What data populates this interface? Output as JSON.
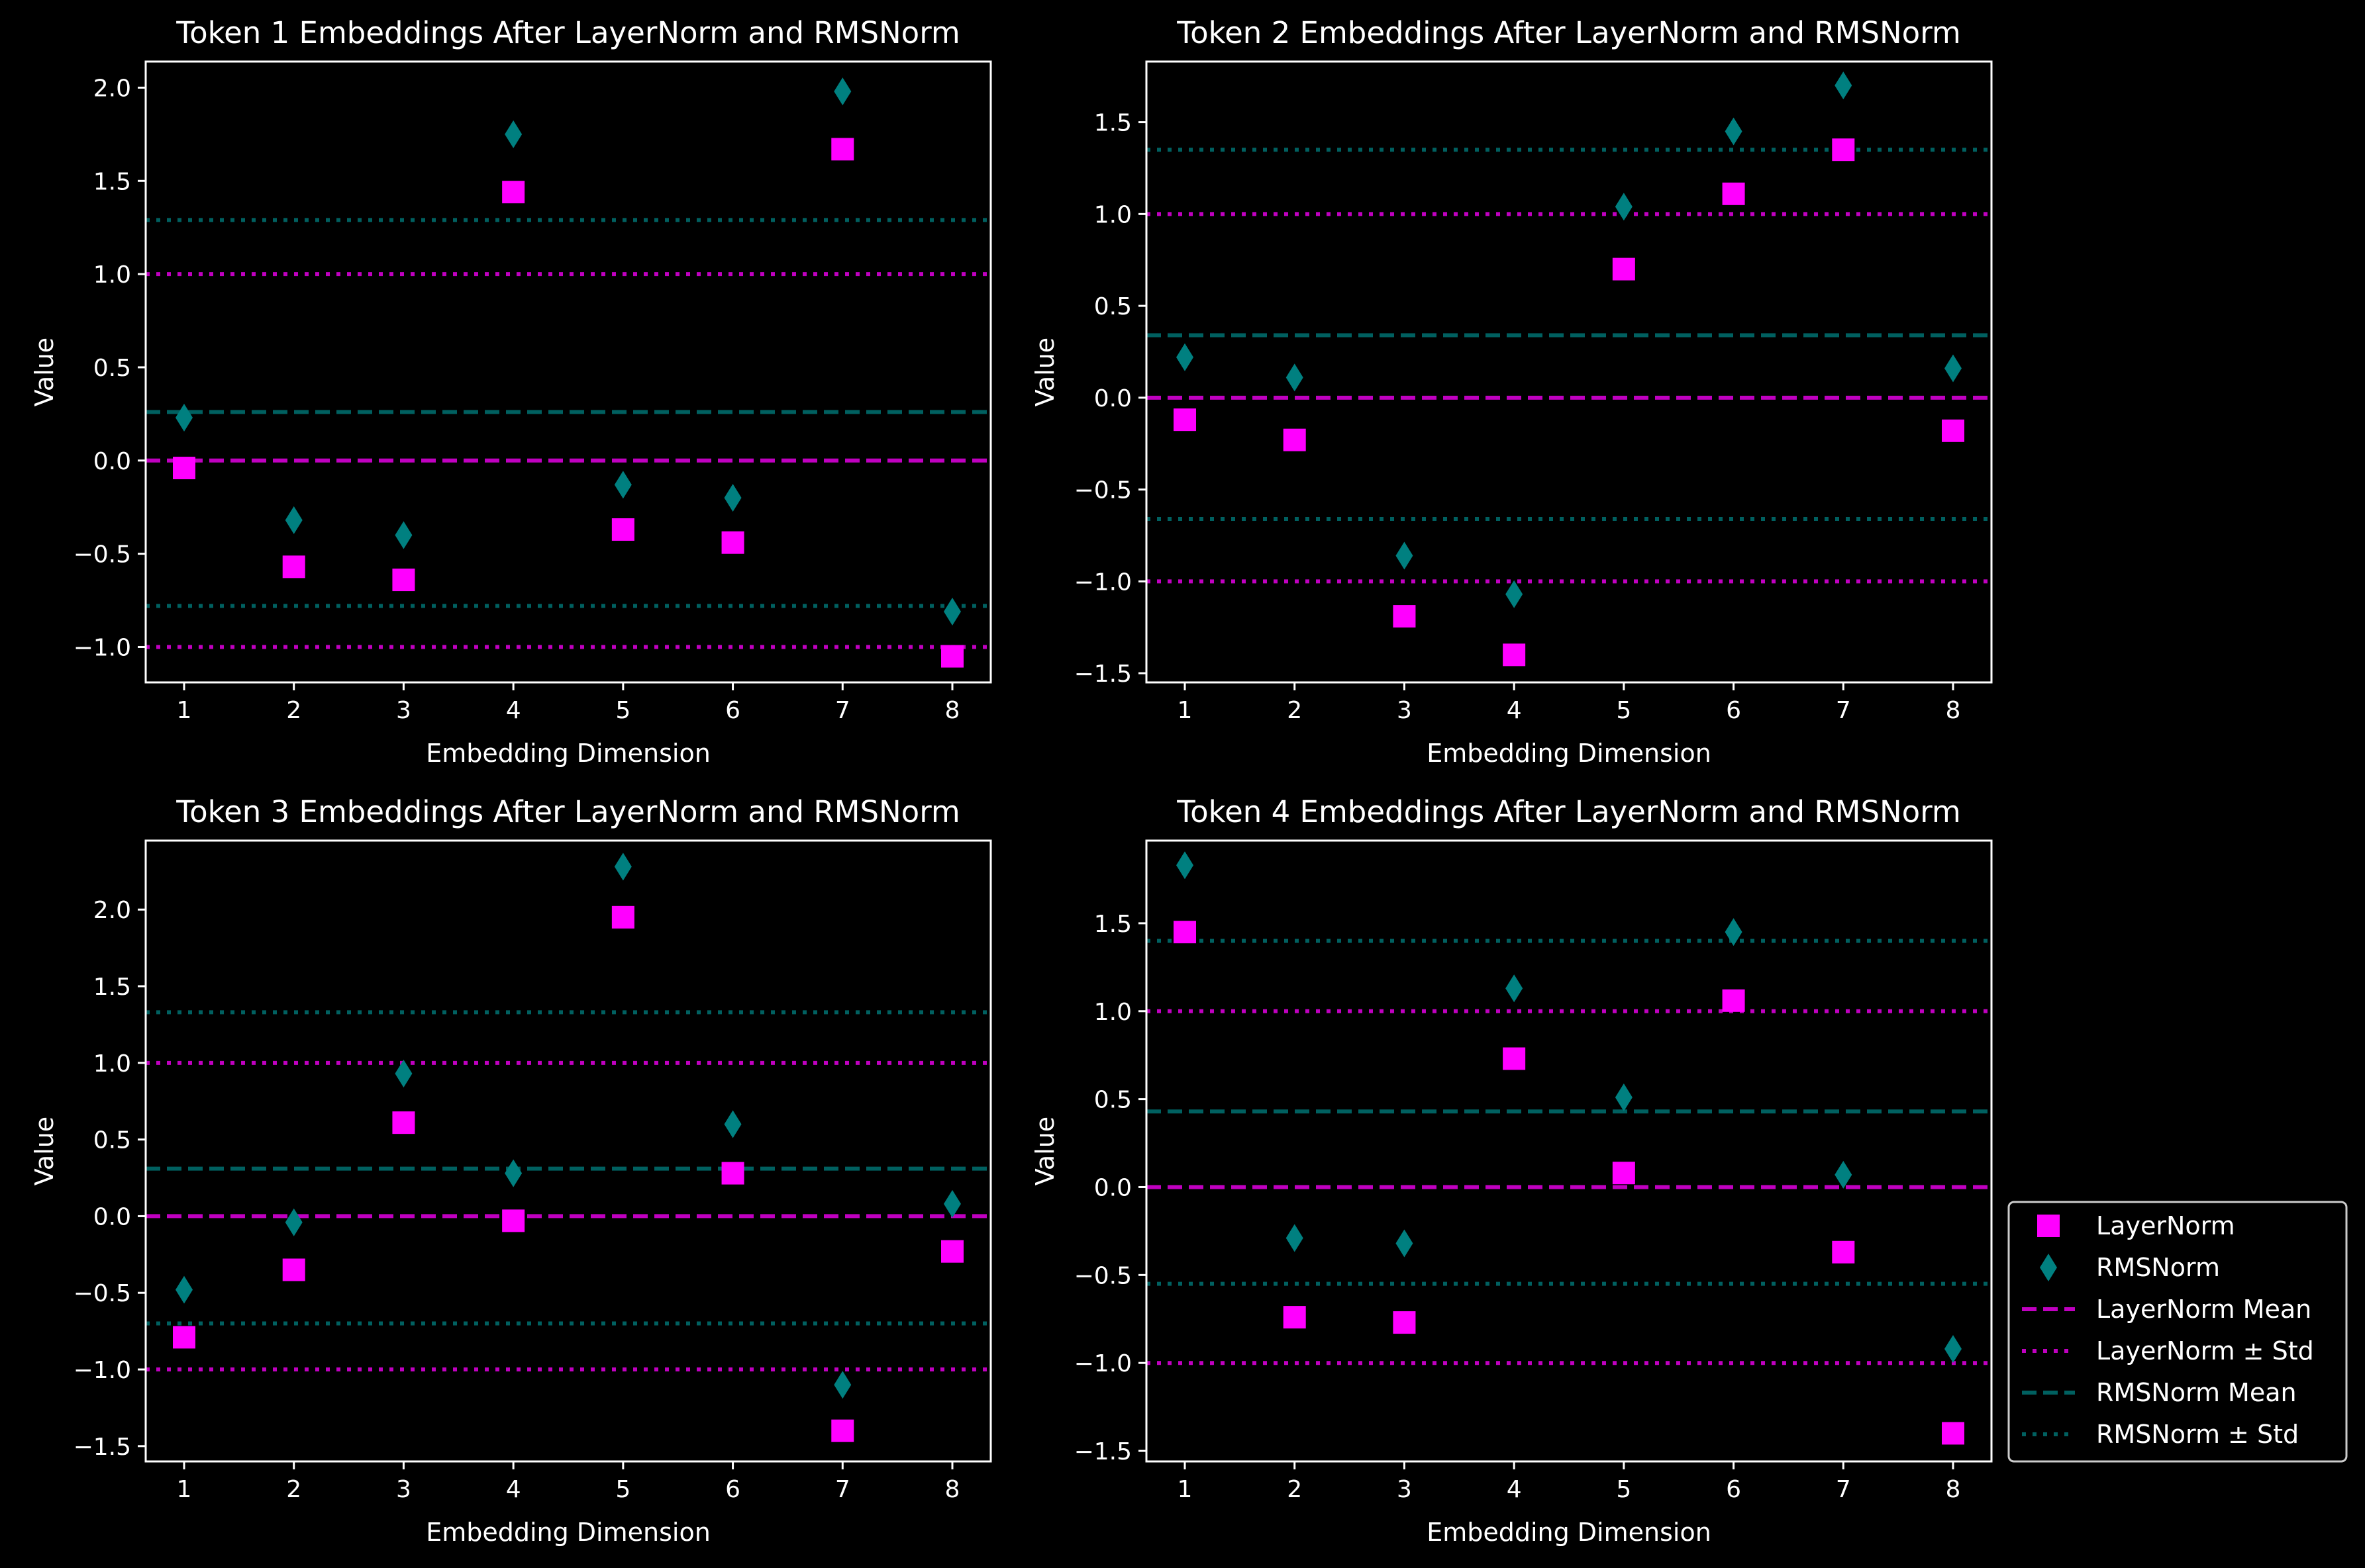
{
  "colors": {
    "background": "#000000",
    "axes": "#ffffff",
    "layernorm": "#ff00ff",
    "layernorm_lines": "#c000c0",
    "rmsnorm": "#008080",
    "rmsnorm_lines": "#006060"
  },
  "legend": {
    "placement": "lower-right outside",
    "entries": [
      {
        "label": "LayerNorm",
        "kind": "square"
      },
      {
        "label": "RMSNorm",
        "kind": "diamond"
      },
      {
        "label": "LayerNorm Mean",
        "kind": "ln-dash"
      },
      {
        "label": "LayerNorm ± Std",
        "kind": "ln-dot"
      },
      {
        "label": "RMSNorm Mean",
        "kind": "rms-dash"
      },
      {
        "label": "RMSNorm ± Std",
        "kind": "rms-dot"
      }
    ]
  },
  "chart_data": [
    {
      "type": "scatter",
      "title": "Token 1 Embeddings After LayerNorm and RMSNorm",
      "xlabel": "Embedding Dimension",
      "ylabel": "Value",
      "x": [
        1,
        2,
        3,
        4,
        5,
        6,
        7,
        8
      ],
      "xlim": [
        0.65,
        8.35
      ],
      "ylim": [
        -1.19,
        2.14
      ],
      "yticks": [
        -1.0,
        -0.5,
        0.0,
        0.5,
        1.0,
        1.5,
        2.0
      ],
      "ytick_labels": [
        "−1.0",
        "−0.5",
        "0.0",
        "0.5",
        "1.0",
        "1.5",
        "2.0"
      ],
      "series": [
        {
          "name": "LayerNorm",
          "values": [
            -0.04,
            -0.57,
            -0.64,
            1.44,
            -0.37,
            -0.44,
            1.67,
            -1.05
          ]
        },
        {
          "name": "RMSNorm",
          "values": [
            0.23,
            -0.32,
            -0.4,
            1.75,
            -0.13,
            -0.2,
            1.98,
            -0.81
          ]
        }
      ],
      "layernorm_mean": 0.0,
      "layernorm_std": [
        -1.0,
        1.0
      ],
      "rmsnorm_mean": 0.26,
      "rmsnorm_std": [
        -0.78,
        1.29
      ]
    },
    {
      "type": "scatter",
      "title": "Token 2 Embeddings After LayerNorm and RMSNorm",
      "xlabel": "Embedding Dimension",
      "ylabel": "Value",
      "x": [
        1,
        2,
        3,
        4,
        5,
        6,
        7,
        8
      ],
      "xlim": [
        0.65,
        8.35
      ],
      "ylim": [
        -1.55,
        1.83
      ],
      "yticks": [
        -1.5,
        -1.0,
        -0.5,
        0.0,
        0.5,
        1.0,
        1.5
      ],
      "ytick_labels": [
        "−1.5",
        "−1.0",
        "−0.5",
        "0.0",
        "0.5",
        "1.0",
        "1.5"
      ],
      "series": [
        {
          "name": "LayerNorm",
          "values": [
            -0.12,
            -0.23,
            -1.19,
            -1.4,
            0.7,
            1.11,
            1.35,
            -0.18
          ]
        },
        {
          "name": "RMSNorm",
          "values": [
            0.22,
            0.11,
            -0.86,
            -1.07,
            1.04,
            1.45,
            1.7,
            0.16
          ]
        }
      ],
      "layernorm_mean": 0.0,
      "layernorm_std": [
        -1.0,
        1.0
      ],
      "rmsnorm_mean": 0.34,
      "rmsnorm_std": [
        -0.66,
        1.35
      ]
    },
    {
      "type": "scatter",
      "title": "Token 3 Embeddings After LayerNorm and RMSNorm",
      "xlabel": "Embedding Dimension",
      "ylabel": "Value",
      "x": [
        1,
        2,
        3,
        4,
        5,
        6,
        7,
        8
      ],
      "xlim": [
        0.65,
        8.35
      ],
      "ylim": [
        -1.6,
        2.45
      ],
      "yticks": [
        -1.5,
        -1.0,
        -0.5,
        0.0,
        0.5,
        1.0,
        1.5,
        2.0
      ],
      "ytick_labels": [
        "−1.5",
        "−1.0",
        "−0.5",
        "0.0",
        "0.5",
        "1.0",
        "1.5",
        "2.0"
      ],
      "series": [
        {
          "name": "LayerNorm",
          "values": [
            -0.79,
            -0.35,
            0.61,
            -0.03,
            1.95,
            0.28,
            -1.4,
            -0.23
          ]
        },
        {
          "name": "RMSNorm",
          "values": [
            -0.48,
            -0.04,
            0.93,
            0.28,
            2.28,
            0.6,
            -1.1,
            0.08
          ]
        }
      ],
      "layernorm_mean": 0.0,
      "layernorm_std": [
        -1.0,
        1.0
      ],
      "rmsnorm_mean": 0.31,
      "rmsnorm_std": [
        -0.7,
        1.33
      ]
    },
    {
      "type": "scatter",
      "title": "Token 4 Embeddings After LayerNorm and RMSNorm",
      "xlabel": "Embedding Dimension",
      "ylabel": "Value",
      "x": [
        1,
        2,
        3,
        4,
        5,
        6,
        7,
        8
      ],
      "xlim": [
        0.65,
        8.35
      ],
      "ylim": [
        -1.56,
        1.97
      ],
      "yticks": [
        -1.5,
        -1.0,
        -0.5,
        0.0,
        0.5,
        1.0,
        1.5
      ],
      "ytick_labels": [
        "−1.5",
        "−1.0",
        "−0.5",
        "0.0",
        "0.5",
        "1.0",
        "1.5"
      ],
      "series": [
        {
          "name": "LayerNorm",
          "values": [
            1.45,
            -0.74,
            -0.77,
            0.73,
            0.08,
            1.06,
            -0.37,
            -1.4
          ]
        },
        {
          "name": "RMSNorm",
          "values": [
            1.83,
            -0.29,
            -0.32,
            1.13,
            0.51,
            1.45,
            0.07,
            -0.92
          ]
        }
      ],
      "layernorm_mean": 0.0,
      "layernorm_std": [
        -1.0,
        1.0
      ],
      "rmsnorm_mean": 0.43,
      "rmsnorm_std": [
        -0.55,
        1.4
      ]
    }
  ]
}
